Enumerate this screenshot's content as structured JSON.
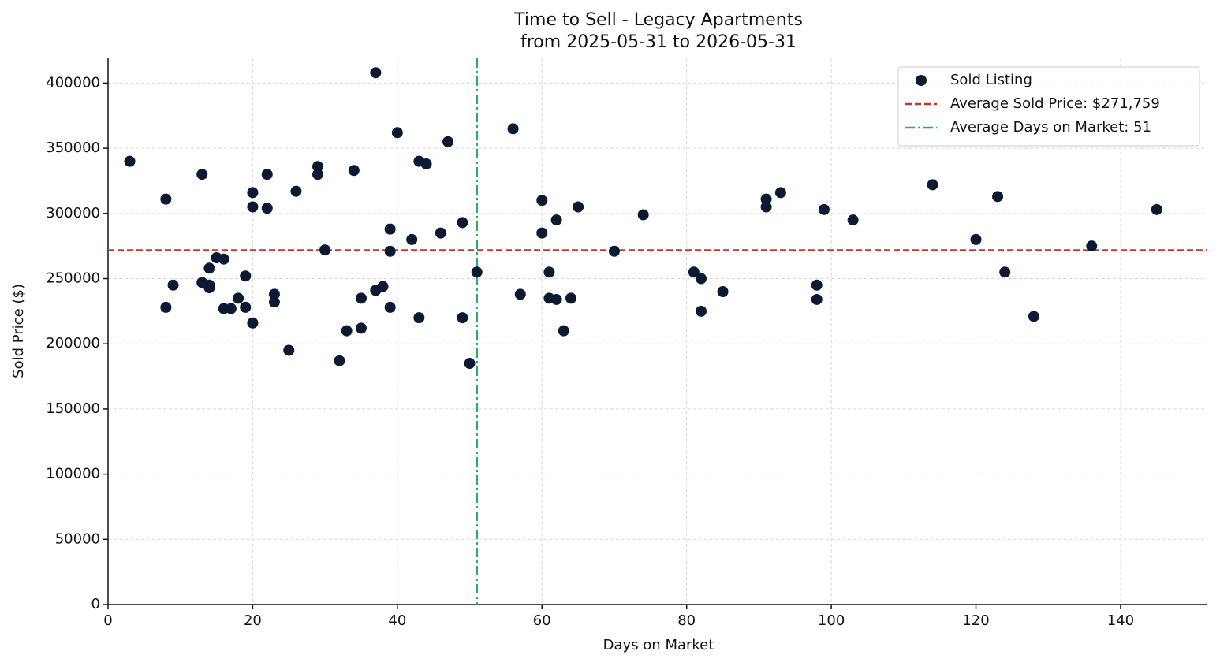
{
  "chart_data": {
    "type": "scatter",
    "title": "Time to Sell - Legacy Apartments",
    "subtitle": "from 2025-05-31 to 2026-05-31",
    "x_label": "Days on Market",
    "y_label": "Sold Price ($)",
    "xlim": [
      0,
      152
    ],
    "ylim": [
      0,
      419000
    ],
    "xticks": [
      0,
      20,
      40,
      60,
      80,
      100,
      120,
      140
    ],
    "yticks": [
      0,
      50000,
      100000,
      150000,
      200000,
      250000,
      300000,
      350000,
      400000
    ],
    "grid": true,
    "legend": "upper right",
    "series": [
      {
        "name": "Sold Listing",
        "color": "#0b1a33",
        "x": [
          3,
          8,
          8,
          9,
          13,
          13,
          14,
          14,
          14,
          15,
          16,
          16,
          17,
          18,
          19,
          19,
          20,
          20,
          20,
          22,
          22,
          23,
          23,
          25,
          26,
          29,
          29,
          30,
          32,
          33,
          34,
          35,
          35,
          37,
          37,
          38,
          39,
          39,
          39,
          40,
          42,
          43,
          43,
          44,
          46,
          47,
          49,
          49,
          50,
          51,
          56,
          57,
          60,
          60,
          61,
          61,
          62,
          62,
          63,
          64,
          65,
          70,
          74,
          81,
          82,
          82,
          85,
          91,
          91,
          93,
          98,
          98,
          99,
          103,
          114,
          120,
          123,
          124,
          128,
          136,
          145
        ],
        "values": [
          340000,
          311000,
          228000,
          245000,
          330000,
          247000,
          258000,
          245000,
          243000,
          266000,
          265000,
          227000,
          227000,
          235000,
          252000,
          228000,
          316000,
          305000,
          216000,
          330000,
          304000,
          238000,
          232000,
          195000,
          317000,
          336000,
          330000,
          272000,
          187000,
          210000,
          333000,
          235000,
          212000,
          408000,
          241000,
          244000,
          288000,
          271000,
          228000,
          362000,
          280000,
          340000,
          220000,
          338000,
          285000,
          355000,
          293000,
          220000,
          185000,
          255000,
          365000,
          238000,
          310000,
          285000,
          255000,
          235000,
          295000,
          234000,
          210000,
          235000,
          305000,
          271000,
          299000,
          255000,
          250000,
          225000,
          240000,
          311000,
          305000,
          316000,
          245000,
          234000,
          303000,
          295000,
          322000,
          280000,
          313000,
          255000,
          221000,
          275000,
          303000
        ]
      }
    ],
    "reference_lines": [
      {
        "name": "Average Sold Price: $271,759",
        "axis": "y",
        "value": 271759,
        "color": "#c0392b",
        "style": "dashed"
      },
      {
        "name": "Average Days on Market: 51",
        "axis": "x",
        "value": 51,
        "color": "#27ae60",
        "style": "dashdot"
      }
    ]
  }
}
